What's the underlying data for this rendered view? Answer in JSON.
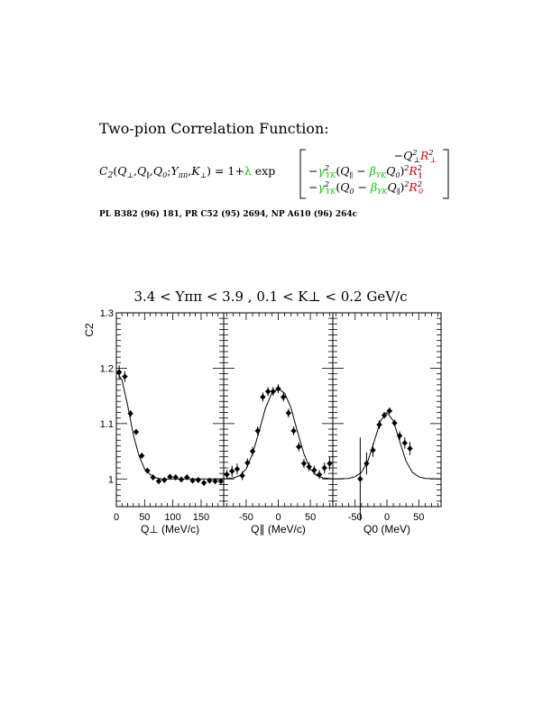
{
  "header": {
    "title": "Two-pion Correlation Function:",
    "formula": {
      "lhs": "C",
      "lhs_sub": "2",
      "lhs_args": "(Q⊥,Q∥,Q0;Yππ,K⊥)",
      "eq": " = 1+",
      "lambda": "λ",
      "exp": " exp",
      "row1": "−Q⊥²R⊥²",
      "row2": "−γYK²(Q∥ − βYKQ0)²R∥²",
      "row3": "−γYK²(Q0 − βYKQ∥)²R0²"
    },
    "reference": "PL B382 (96) 181, PR C52 (95) 2694, NP A610 (96) 264c"
  },
  "chart_data": {
    "type": "scatter",
    "title": "3.4 < Yππ < 3.9 , 0.1 < K⊥ < 0.2 GeV/c",
    "ylabel": "C2",
    "ylim": [
      0.95,
      1.3
    ],
    "yticks": [
      1,
      1.1,
      1.2,
      1.3
    ],
    "ytick_labels": [
      "1",
      "1.1",
      "1.2",
      "1.3"
    ],
    "panels": [
      {
        "xlabel": "Q⊥ (MeV/c)",
        "xlim": [
          0,
          190
        ],
        "xticks": [
          0,
          50,
          100,
          150
        ],
        "xtick_labels": [
          "0",
          "50",
          "100",
          "150"
        ],
        "points": {
          "x": [
            5,
            15,
            25,
            35,
            45,
            55,
            65,
            75,
            85,
            95,
            105,
            115,
            125,
            135,
            145,
            155,
            165,
            175,
            185
          ],
          "y": [
            1.193,
            1.185,
            1.118,
            1.085,
            1.042,
            1.015,
            1.003,
            0.996,
            0.998,
            1.004,
            1.003,
            0.999,
            1.003,
            0.997,
            0.998,
            0.993,
            0.997,
            0.996,
            0.996
          ],
          "err": [
            0.012,
            0.01,
            0.006,
            0.005,
            0.004,
            0.003,
            0.003,
            0.003,
            0.003,
            0.003,
            0.003,
            0.003,
            0.003,
            0.003,
            0.003,
            0.003,
            0.003,
            0.004,
            0.004
          ]
        },
        "fit": {
          "x": [
            0,
            10,
            20,
            30,
            40,
            50,
            60,
            70,
            80,
            100,
            130,
            160,
            190
          ],
          "y": [
            1.195,
            1.178,
            1.133,
            1.08,
            1.042,
            1.018,
            1.008,
            1.002,
            1.0,
            1.0,
            1.0,
            1.0,
            1.0
          ]
        }
      },
      {
        "xlabel": "Q∥ (MeV/c)",
        "xlim": [
          -85,
          85
        ],
        "xticks": [
          -50,
          0,
          50
        ],
        "xtick_labels": [
          "-50",
          "0",
          "50"
        ],
        "points": {
          "x": [
            -80,
            -72,
            -64,
            -56,
            -48,
            -40,
            -32,
            -24,
            -16,
            -8,
            0,
            8,
            16,
            24,
            32,
            40,
            48,
            56,
            64,
            72,
            80
          ],
          "y": [
            1.008,
            1.014,
            1.018,
            1.006,
            1.029,
            1.05,
            1.087,
            1.148,
            1.158,
            1.158,
            1.163,
            1.148,
            1.119,
            1.087,
            1.058,
            1.028,
            1.022,
            1.016,
            1.008,
            1.02,
            1.028
          ],
          "err": [
            0.008,
            0.01,
            0.01,
            0.008,
            0.008,
            0.008,
            0.008,
            0.008,
            0.008,
            0.008,
            0.008,
            0.008,
            0.008,
            0.008,
            0.008,
            0.008,
            0.008,
            0.008,
            0.008,
            0.01,
            0.012
          ]
        },
        "fit": {
          "x": [
            -85,
            -70,
            -60,
            -50,
            -40,
            -30,
            -20,
            -10,
            0,
            10,
            20,
            30,
            40,
            50,
            60,
            70,
            85
          ],
          "y": [
            1.0,
            1.002,
            1.006,
            1.018,
            1.045,
            1.085,
            1.128,
            1.155,
            1.163,
            1.155,
            1.128,
            1.085,
            1.045,
            1.018,
            1.006,
            1.002,
            1.0
          ]
        }
      },
      {
        "xlabel": "Q0 (MeV)",
        "xlim": [
          -85,
          85
        ],
        "xticks": [
          -50,
          0,
          50
        ],
        "xtick_labels": [
          "-50",
          "0",
          "50"
        ],
        "points": {
          "x": [
            -42,
            -32,
            -22,
            -12,
            -4,
            4,
            12,
            20,
            28,
            36
          ],
          "y": [
            1.0,
            1.028,
            1.052,
            1.098,
            1.115,
            1.123,
            1.101,
            1.078,
            1.065,
            1.055
          ],
          "err": [
            0.075,
            0.02,
            0.012,
            0.008,
            0.006,
            0.006,
            0.006,
            0.008,
            0.01,
            0.012
          ]
        },
        "fit": {
          "x": [
            -85,
            -60,
            -50,
            -40,
            -30,
            -20,
            -10,
            0,
            10,
            20,
            30,
            40,
            50,
            60,
            85
          ],
          "y": [
            1.0,
            1.001,
            1.004,
            1.012,
            1.032,
            1.068,
            1.105,
            1.12,
            1.105,
            1.068,
            1.032,
            1.012,
            1.004,
            1.001,
            1.0
          ]
        }
      }
    ]
  }
}
